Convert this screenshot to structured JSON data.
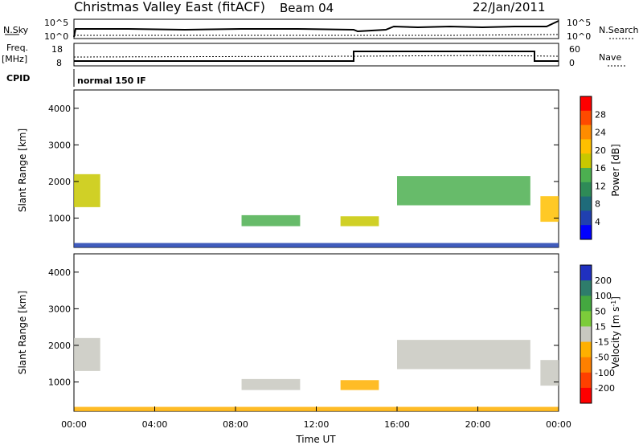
{
  "header": {
    "radar": "Christmas Valley East (fitACF)",
    "beam": "Beam 04",
    "date": "22/Jan/2011"
  },
  "top_panels": {
    "nsky_label": "N.Sky",
    "nsky_ticks": [
      "10^5",
      "10^0"
    ],
    "nsearch_label": "N.Search",
    "nsearch_ticks": [
      "10^5",
      "10^0"
    ],
    "freq_label_1": "Freq.",
    "freq_label_2": "[MHz]",
    "freq_ticks": [
      "18",
      "8"
    ],
    "nave_label": "Nave",
    "nave_ticks": [
      "60",
      "0"
    ],
    "cpid_label": "CPID",
    "cpid_value": "normal 150 IF"
  },
  "power_colorbar": {
    "label": "Power [dB]",
    "ticks": [
      "28",
      "24",
      "20",
      "16",
      "12",
      "8",
      "4"
    ],
    "colors": [
      "#ff0000",
      "#ff4a00",
      "#ff8c00",
      "#ffc000",
      "#c8c800",
      "#4caf50",
      "#2e8b57",
      "#1f6b7a",
      "#2040b0",
      "#0000ff"
    ]
  },
  "velocity_colorbar": {
    "label_main": "Velocity [m s",
    "label_sup": "-1",
    "label_end": "]",
    "ticks": [
      "200",
      "100",
      "50",
      "15",
      "-15",
      "-50",
      "-100",
      "-200"
    ],
    "colors": [
      "#2030c0",
      "#2e7d6b",
      "#44a840",
      "#7ccc3a",
      "#c8c8c0",
      "#ffb000",
      "#ff8000",
      "#ff4000",
      "#ff0000"
    ]
  },
  "chart_data": [
    {
      "type": "heatmap",
      "title": "",
      "ylabel": "Slant Range [km]",
      "xlabel": "",
      "ylim": [
        200,
        4500
      ],
      "yticks": [
        "4000",
        "3000",
        "2000",
        "1000"
      ],
      "xlim": [
        0,
        24
      ],
      "quantity": "Power [dB]",
      "clim": [
        0,
        32
      ],
      "patches": [
        {
          "t0": 0.0,
          "t1": 1.3,
          "r0": 1300,
          "r1": 2200,
          "power": 16
        },
        {
          "t0": 8.3,
          "t1": 11.2,
          "r0": 780,
          "r1": 1080,
          "power": 14
        },
        {
          "t0": 13.2,
          "t1": 15.1,
          "r0": 780,
          "r1": 1050,
          "power": 18
        },
        {
          "t0": 16.0,
          "t1": 22.6,
          "r0": 1350,
          "r1": 2150,
          "power": 15
        },
        {
          "t0": 23.1,
          "t1": 24.0,
          "r0": 900,
          "r1": 1600,
          "power": 22
        },
        {
          "t0": 0.0,
          "t1": 24.0,
          "r0": 200,
          "r1": 320,
          "power": 6
        }
      ]
    },
    {
      "type": "heatmap",
      "title": "",
      "ylabel": "Slant Range [km]",
      "xlabel": "Time UT",
      "ylim": [
        200,
        4500
      ],
      "yticks": [
        "4000",
        "3000",
        "2000",
        "1000"
      ],
      "xlim": [
        0,
        24
      ],
      "xticks": [
        "00:00",
        "04:00",
        "08:00",
        "12:00",
        "16:00",
        "20:00",
        "00:00"
      ],
      "quantity": "Velocity [m s-1]",
      "clim": [
        -200,
        200
      ],
      "patches": [
        {
          "t0": 0.0,
          "t1": 1.3,
          "r0": 1300,
          "r1": 2200,
          "velocity": 0
        },
        {
          "t0": 8.3,
          "t1": 11.2,
          "r0": 780,
          "r1": 1080,
          "velocity": 0
        },
        {
          "t0": 13.2,
          "t1": 15.1,
          "r0": 780,
          "r1": 1050,
          "velocity": -60
        },
        {
          "t0": 16.0,
          "t1": 22.6,
          "r0": 1350,
          "r1": 2150,
          "velocity": 0
        },
        {
          "t0": 23.1,
          "t1": 24.0,
          "r0": 900,
          "r1": 1600,
          "velocity": 0
        },
        {
          "t0": 0.0,
          "t1": 24.0,
          "r0": 200,
          "r1": 320,
          "velocity": -40
        }
      ]
    }
  ]
}
